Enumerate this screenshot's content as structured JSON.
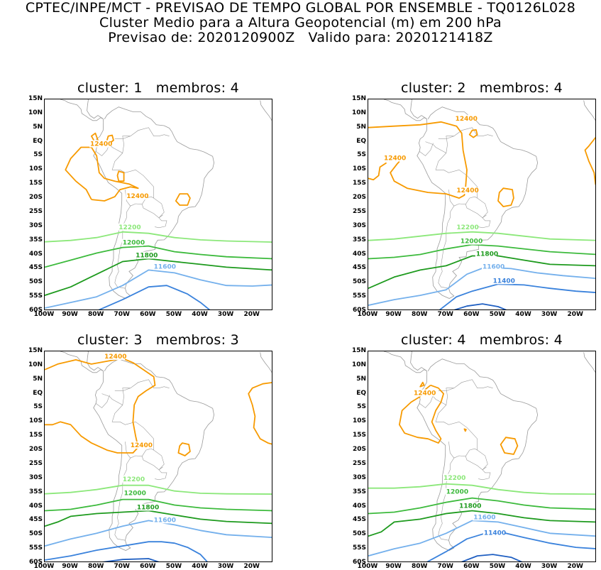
{
  "header": {
    "line1": "CPTEC/INPE/MCT - PREVISAO DE TEMPO GLOBAL POR ENSEMBLE - TQ0126L028",
    "line2": "Cluster Medio para a Altura Geopotencial (m) em 200 hPa",
    "line3": "Previsao de: 2020120900Z   Valido para: 2020121418Z"
  },
  "axes": {
    "lat_labels": [
      "15N",
      "10N",
      "5N",
      "EQ",
      "5S",
      "10S",
      "15S",
      "20S",
      "25S",
      "30S",
      "35S",
      "40S",
      "45S",
      "50S",
      "55S",
      "60S"
    ],
    "lon_labels": [
      "100W",
      "90W",
      "80W",
      "70W",
      "60W",
      "50W",
      "40W",
      "30W",
      "20W"
    ]
  },
  "colors": {
    "c12400": "#f79a00",
    "c12200": "#8ce87a",
    "c12000": "#3cba3c",
    "c11800": "#1d9a1d",
    "c11600": "#74b0ec",
    "c11400": "#3a82dc",
    "c11200": "#1f5fc2",
    "coast": "#9a9a9a"
  },
  "panels": [
    {
      "title": "cluster: 1   membros: 4",
      "labels": [
        {
          "text": "12400",
          "color": "c12400"
        },
        {
          "text": "12400",
          "color": "c12400"
        },
        {
          "text": "12200",
          "color": "c12200"
        },
        {
          "text": "12000",
          "color": "c12000"
        },
        {
          "text": "11800",
          "color": "c11800"
        },
        {
          "text": "11600",
          "color": "c11600"
        }
      ]
    },
    {
      "title": "cluster: 2   membros: 4",
      "labels": [
        {
          "text": "12400",
          "color": "c12400"
        },
        {
          "text": "12400",
          "color": "c12400"
        },
        {
          "text": "12400",
          "color": "c12400"
        },
        {
          "text": "12200",
          "color": "c12200"
        },
        {
          "text": "12000",
          "color": "c12000"
        },
        {
          "text": "11800",
          "color": "c11800"
        },
        {
          "text": "11600",
          "color": "c11600"
        },
        {
          "text": "11400",
          "color": "c11400"
        }
      ]
    },
    {
      "title": "cluster: 3   membros: 3",
      "labels": [
        {
          "text": "12400",
          "color": "c12400"
        },
        {
          "text": "12400",
          "color": "c12400"
        },
        {
          "text": "12200",
          "color": "c12200"
        },
        {
          "text": "12000",
          "color": "c12000"
        },
        {
          "text": "11800",
          "color": "c11800"
        },
        {
          "text": "11600",
          "color": "c11600"
        }
      ]
    },
    {
      "title": "cluster: 4   membros: 4",
      "labels": [
        {
          "text": "12400",
          "color": "c12400"
        },
        {
          "text": "12200",
          "color": "c12200"
        },
        {
          "text": "12000",
          "color": "c12000"
        },
        {
          "text": "11800",
          "color": "c11800"
        },
        {
          "text": "11600",
          "color": "c11600"
        },
        {
          "text": "11400",
          "color": "c11400"
        }
      ]
    }
  ]
}
